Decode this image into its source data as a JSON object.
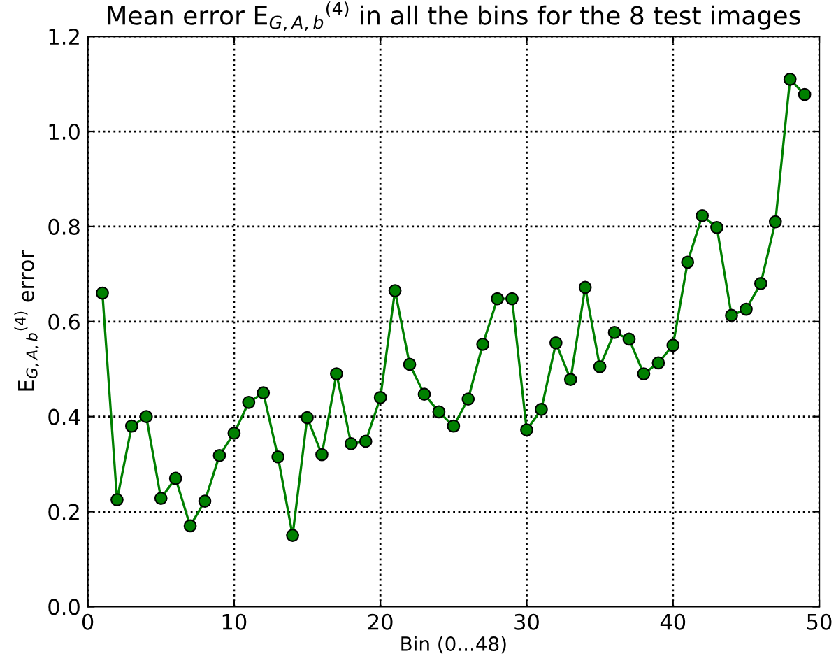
{
  "chart_data": {
    "type": "line",
    "title": "Mean error E$_{G,A,b}$$^{(4)}$ in all the bins for the 8 test images",
    "xlabel": "Bin (0...48)",
    "ylabel": "E$_{G,A,b}$$^{(4)}$ error",
    "x": [
      1,
      2,
      3,
      4,
      5,
      6,
      7,
      8,
      9,
      10,
      11,
      12,
      13,
      14,
      15,
      16,
      17,
      18,
      19,
      20,
      21,
      22,
      23,
      24,
      25,
      26,
      27,
      28,
      29,
      30,
      31,
      32,
      33,
      34,
      35,
      36,
      37,
      38,
      39,
      40,
      41,
      42,
      43,
      44,
      45,
      46,
      47,
      48,
      49
    ],
    "series": [
      {
        "color": "#008000",
        "values": [
          0.66,
          0.225,
          0.38,
          0.4,
          0.228,
          0.27,
          0.17,
          0.222,
          0.318,
          0.365,
          0.43,
          0.45,
          0.315,
          0.15,
          0.398,
          0.32,
          0.49,
          0.343,
          0.348,
          0.44,
          0.665,
          0.51,
          0.447,
          0.41,
          0.38,
          0.437,
          0.552,
          0.648,
          0.648,
          0.372,
          0.415,
          0.555,
          0.478,
          0.672,
          0.505,
          0.577,
          0.563,
          0.49,
          0.513,
          0.55,
          0.725,
          0.823,
          0.798,
          0.613,
          0.626,
          0.68,
          0.81,
          1.11,
          1.078
        ]
      }
    ],
    "xlim": [
      0,
      50
    ],
    "xticks": [
      0,
      10,
      20,
      30,
      40,
      50
    ],
    "ylim": [
      0,
      1.2
    ],
    "yticks": [
      {
        "value": 0,
        "label": "0.0"
      },
      0.2,
      0.4,
      0.6,
      0.8,
      {
        "value": 1,
        "label": "1.0"
      },
      1.2
    ],
    "grid": true,
    "marker": "circle",
    "line_style": "solid"
  }
}
